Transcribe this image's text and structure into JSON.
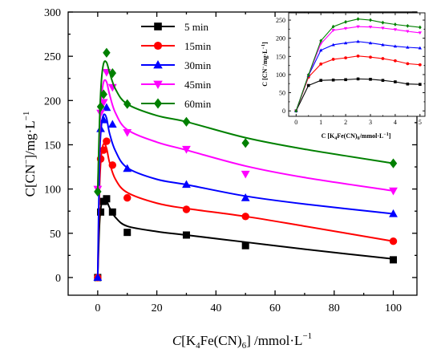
{
  "chart_data": [
    {
      "type": "scatter",
      "title": "",
      "xlim": [
        -10,
        108
      ],
      "ylim": [
        -20,
        300
      ],
      "xticks": [
        0,
        20,
        40,
        60,
        80,
        100
      ],
      "yticks": [
        0,
        50,
        100,
        150,
        200,
        250,
        300
      ],
      "ylabel_parts": {
        "pre": "C[CN",
        "sup": "−",
        "post": "]/mg·L",
        "sup2": "−1"
      },
      "xlabel_parts": {
        "italic": "C",
        "pre": "[K",
        "sub1": "4",
        "mid": "Fe(CN)",
        "sub2": "6",
        "post": "] /mmol·L",
        "sup": "−1"
      },
      "legend_position": "top-center",
      "series": [
        {
          "name": "5 min",
          "color": "#000000",
          "marker": "square",
          "points": [
            [
              0,
              0
            ],
            [
              1,
              74
            ],
            [
              2,
              86
            ],
            [
              3,
              89
            ],
            [
              5,
              74
            ],
            [
              10,
              51
            ],
            [
              30,
              48
            ],
            [
              50,
              36
            ],
            [
              100,
              20
            ]
          ],
          "curve": [
            [
              0,
              0
            ],
            [
              0.6,
              60
            ],
            [
              1.2,
              82
            ],
            [
              2,
              89
            ],
            [
              3,
              87
            ],
            [
              4,
              79
            ],
            [
              6,
              68
            ],
            [
              10,
              58
            ],
            [
              20,
              52
            ],
            [
              30,
              48
            ],
            [
              50,
              40
            ],
            [
              70,
              32
            ],
            [
              100,
              21
            ]
          ]
        },
        {
          "name": "15min",
          "color": "#ff0000",
          "marker": "circle",
          "points": [
            [
              0,
              0
            ],
            [
              1,
              134
            ],
            [
              2,
              144
            ],
            [
              3,
              154
            ],
            [
              5,
              127
            ],
            [
              10,
              90
            ],
            [
              30,
              77
            ],
            [
              50,
              69
            ],
            [
              100,
              41
            ]
          ],
          "curve": [
            [
              0,
              0
            ],
            [
              0.6,
              100
            ],
            [
              1.2,
              138
            ],
            [
              2,
              151
            ],
            [
              3,
              146
            ],
            [
              4,
              130
            ],
            [
              6,
              111
            ],
            [
              10,
              96
            ],
            [
              20,
              84
            ],
            [
              30,
              78
            ],
            [
              50,
              69
            ],
            [
              70,
              58
            ],
            [
              100,
              41
            ]
          ]
        },
        {
          "name": "30min",
          "color": "#0000ff",
          "marker": "triangle",
          "points": [
            [
              0,
              0
            ],
            [
              1,
              168
            ],
            [
              2,
              178
            ],
            [
              3,
              192
            ],
            [
              5,
              173
            ],
            [
              10,
              123
            ],
            [
              30,
              105
            ],
            [
              50,
              90
            ],
            [
              100,
              72
            ]
          ],
          "curve": [
            [
              0,
              0
            ],
            [
              0.6,
              130
            ],
            [
              1.2,
              170
            ],
            [
              2,
              184
            ],
            [
              3,
              180
            ],
            [
              4,
              163
            ],
            [
              6,
              143
            ],
            [
              10,
              124
            ],
            [
              20,
              111
            ],
            [
              30,
              105
            ],
            [
              50,
              92
            ],
            [
              70,
              83
            ],
            [
              100,
              72
            ]
          ]
        },
        {
          "name": "45min",
          "color": "#ff00ff",
          "marker": "triangle-down",
          "points": [
            [
              0,
              100
            ],
            [
              1,
              186
            ],
            [
              2,
              198
            ],
            [
              3,
              232
            ],
            [
              5,
              215
            ],
            [
              10,
              164
            ],
            [
              30,
              145
            ],
            [
              50,
              117
            ],
            [
              100,
              98
            ]
          ],
          "curve": [
            [
              0,
              100
            ],
            [
              0.6,
              160
            ],
            [
              1.2,
              200
            ],
            [
              2,
              221
            ],
            [
              3,
              221
            ],
            [
              4,
              207
            ],
            [
              6,
              186
            ],
            [
              10,
              167
            ],
            [
              20,
              153
            ],
            [
              30,
              144
            ],
            [
              50,
              126
            ],
            [
              70,
              113
            ],
            [
              100,
              98
            ]
          ]
        },
        {
          "name": "60min",
          "color": "#008000",
          "marker": "diamond",
          "points": [
            [
              0,
              97
            ],
            [
              1,
              193
            ],
            [
              2,
              207
            ],
            [
              3,
              254
            ],
            [
              5,
              231
            ],
            [
              10,
              196
            ],
            [
              30,
              176
            ],
            [
              50,
              152
            ],
            [
              100,
              129
            ]
          ],
          "curve": [
            [
              0,
              97
            ],
            [
              0.6,
              175
            ],
            [
              1.2,
              220
            ],
            [
              2,
              242
            ],
            [
              3,
              243
            ],
            [
              4,
              232
            ],
            [
              6,
              213
            ],
            [
              10,
              196
            ],
            [
              20,
              183
            ],
            [
              30,
              176
            ],
            [
              50,
              158
            ],
            [
              70,
              145
            ],
            [
              100,
              129
            ]
          ]
        }
      ]
    },
    {
      "type": "line",
      "title": "",
      "xlim": [
        -0.3,
        5.2
      ],
      "ylim": [
        -15,
        270
      ],
      "xticks": [
        0,
        1,
        2,
        3,
        4,
        5
      ],
      "yticks": [
        0,
        50,
        100,
        150,
        200,
        250
      ],
      "ylabel_parts": {
        "pre": "C [CN",
        "sup": "−",
        "post": "/mg·L",
        "sup2": "−1",
        "end": "]"
      },
      "xlabel_parts": {
        "pre": "C [K",
        "sub1": "4",
        "mid": "Fe(CN)",
        "sub2": "6",
        "post": "/mmol·L",
        "sup": "−1",
        "end": "]"
      },
      "series": [
        {
          "name": "5 min",
          "color": "#000000",
          "marker": "square",
          "points": [
            [
              0,
              0
            ],
            [
              0.5,
              70
            ],
            [
              1,
              84
            ],
            [
              1.5,
              85
            ],
            [
              2,
              86
            ],
            [
              2.5,
              88
            ],
            [
              3,
              87
            ],
            [
              3.5,
              84
            ],
            [
              4,
              80
            ],
            [
              4.5,
              74
            ],
            [
              5,
              73
            ]
          ]
        },
        {
          "name": "15min",
          "color": "#ff0000",
          "marker": "circle",
          "points": [
            [
              0,
              0
            ],
            [
              0.5,
              93
            ],
            [
              1,
              129
            ],
            [
              1.5,
              142
            ],
            [
              2,
              146
            ],
            [
              2.5,
              151
            ],
            [
              3,
              148
            ],
            [
              3.5,
              144
            ],
            [
              4,
              138
            ],
            [
              4.5,
              130
            ],
            [
              5,
              127
            ]
          ]
        },
        {
          "name": "30min",
          "color": "#0000ff",
          "marker": "triangle",
          "points": [
            [
              0,
              0
            ],
            [
              0.5,
              97
            ],
            [
              1,
              167
            ],
            [
              1.5,
              182
            ],
            [
              2,
              187
            ],
            [
              2.5,
              191
            ],
            [
              3,
              187
            ],
            [
              3.5,
              182
            ],
            [
              4,
              178
            ],
            [
              4.5,
              175
            ],
            [
              5,
              173
            ]
          ]
        },
        {
          "name": "45min",
          "color": "#ff00ff",
          "marker": "triangle-down",
          "points": [
            [
              0,
              0
            ],
            [
              0.5,
              98
            ],
            [
              1,
              185
            ],
            [
              1.5,
              222
            ],
            [
              2,
              227
            ],
            [
              2.5,
              232
            ],
            [
              3,
              231
            ],
            [
              3.5,
              228
            ],
            [
              4,
              224
            ],
            [
              4.5,
              219
            ],
            [
              5,
              215
            ]
          ]
        },
        {
          "name": "60min",
          "color": "#008000",
          "marker": "diamond",
          "points": [
            [
              0,
              0
            ],
            [
              0.5,
              99
            ],
            [
              1,
              193
            ],
            [
              1.5,
              232
            ],
            [
              2,
              245
            ],
            [
              2.5,
              253
            ],
            [
              3,
              250
            ],
            [
              3.5,
              243
            ],
            [
              4,
              238
            ],
            [
              4.5,
              234
            ],
            [
              5,
              230
            ]
          ]
        }
      ]
    }
  ]
}
